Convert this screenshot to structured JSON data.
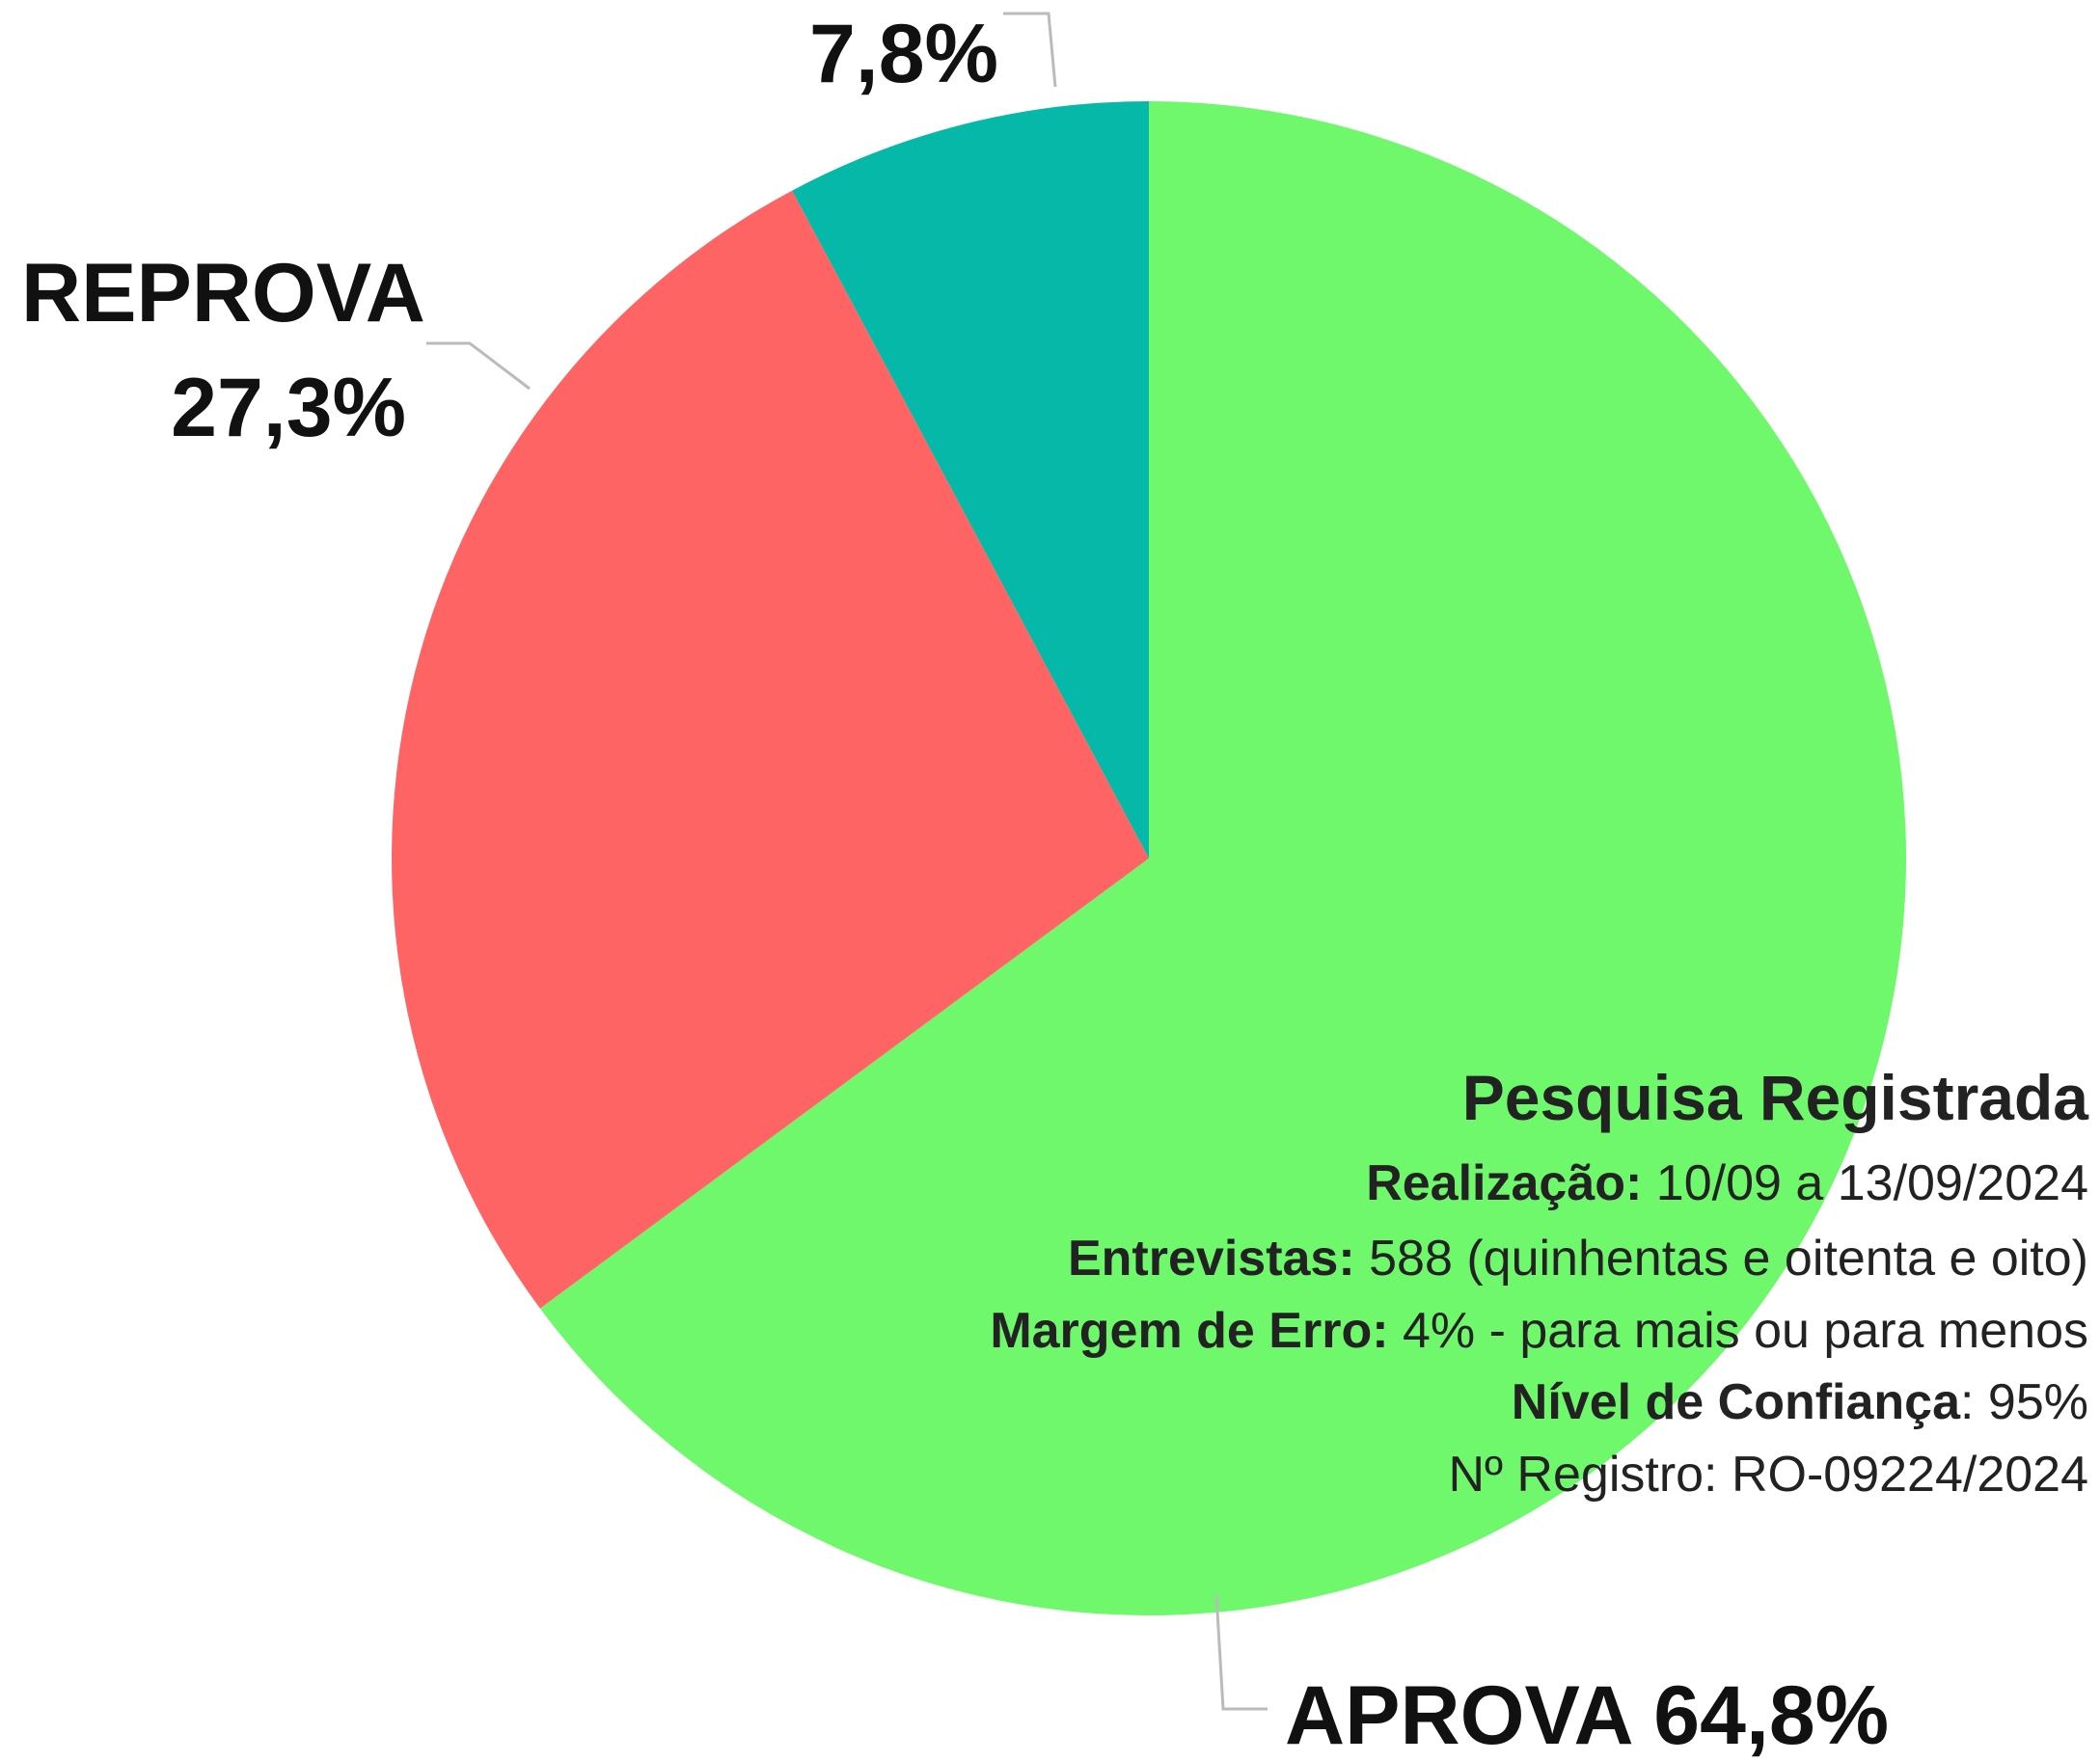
{
  "chart_data": {
    "type": "pie",
    "categories": [
      "APROVA",
      "REPROVA",
      null
    ],
    "values": [
      64.8,
      27.3,
      7.8
    ],
    "value_labels": [
      "64,8%",
      "27,3%",
      "7,8%"
    ],
    "colors": [
      "#6ff86c",
      "#ff6464",
      "#05b8a8"
    ]
  },
  "info": {
    "title": "Pesquisa Registrada",
    "lines": [
      {
        "label": "Realização:",
        "text": " 10/09 a 13/09/2024"
      },
      {
        "label": "Entrevistas:",
        "text": " 588 (quinhentas e oitenta e oito)"
      },
      {
        "label": "Margem de Erro:",
        "text": " 4% - para mais ou para menos"
      },
      {
        "label": "Nível de Confiança",
        "text": ": 95%"
      },
      {
        "label": null,
        "text": "Nº Registro: RO-09224/2024"
      }
    ]
  }
}
